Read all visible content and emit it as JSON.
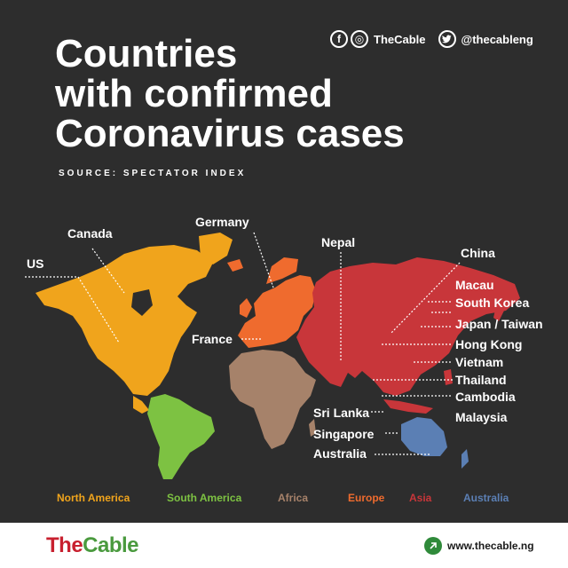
{
  "header": {
    "title_lines": [
      "Countries",
      "with confirmed",
      "Coronavirus cases"
    ],
    "source": "SOURCE: SPECTATOR INDEX"
  },
  "social": {
    "facebook_icon": "f",
    "instagram_icon": "◎",
    "brand": "TheCable",
    "twitter_icon": "🐦",
    "handle": "@thecableng"
  },
  "countries": {
    "us": "US",
    "canada": "Canada",
    "germany": "Germany",
    "france": "France",
    "nepal": "Nepal",
    "china": "China",
    "macau": "Macau",
    "south_korea": "South Korea",
    "japan_taiwan": "Japan / Taiwan",
    "hong_kong": "Hong Kong",
    "vietnam": "Vietnam",
    "thailand": "Thailand",
    "cambodia": "Cambodia",
    "malaysia": "Malaysia",
    "sri_lanka": "Sri Lanka",
    "singapore": "Singapore",
    "australia": "Australia"
  },
  "legend": [
    {
      "label": "North America",
      "color": "#f0a41c"
    },
    {
      "label": "South America",
      "color": "#7dc242"
    },
    {
      "label": "Africa",
      "color": "#a6826a"
    },
    {
      "label": "Europe",
      "color": "#ef6b2e"
    },
    {
      "label": "Asia",
      "color": "#c8363a"
    },
    {
      "label": "Australia",
      "color": "#5b7fb4"
    }
  ],
  "footer": {
    "logo_the": "The",
    "logo_cable": "Cable",
    "url": "www.thecable.ng"
  }
}
